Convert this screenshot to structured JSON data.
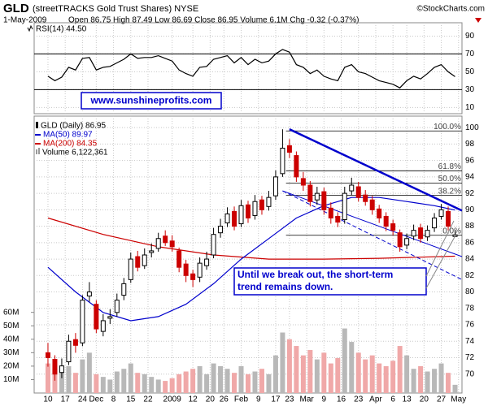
{
  "chart_data": {
    "type": "candlestick",
    "header": {
      "symbol": "GLD",
      "name": "(streetTRACKS Gold Trust Shares) NYSE",
      "source": "©StockCharts.com",
      "date": "1-May-2009",
      "quote": "Open 86.75 High 87.49 Low 86.69 Close 86.95 Volume 6.1M Chg -0.32 (-0.37%)"
    },
    "xlim": [
      -4,
      120
    ],
    "xticks": [
      {
        "value": 0,
        "label": "10"
      },
      {
        "value": 5,
        "label": "17"
      },
      {
        "value": 10,
        "label": "24"
      },
      {
        "value": 14,
        "label": "Dec"
      },
      {
        "value": 19,
        "label": "8"
      },
      {
        "value": 24,
        "label": "15"
      },
      {
        "value": 29,
        "label": "22"
      },
      {
        "value": 36,
        "label": "2009"
      },
      {
        "value": 42,
        "label": "12"
      },
      {
        "value": 47,
        "label": "20"
      },
      {
        "value": 51,
        "label": "26"
      },
      {
        "value": 56,
        "label": "Feb"
      },
      {
        "value": 61,
        "label": "9"
      },
      {
        "value": 66,
        "label": "17"
      },
      {
        "value": 70,
        "label": "23"
      },
      {
        "value": 75,
        "label": "Mar"
      },
      {
        "value": 80,
        "label": "9"
      },
      {
        "value": 85,
        "label": "16"
      },
      {
        "value": 90,
        "label": "23"
      },
      {
        "value": 95,
        "label": "Apr"
      },
      {
        "value": 100,
        "label": "6"
      },
      {
        "value": 104,
        "label": "13"
      },
      {
        "value": 109,
        "label": "20"
      },
      {
        "value": 114,
        "label": "27"
      },
      {
        "value": 119,
        "label": "May"
      }
    ],
    "grid": true,
    "rsi": {
      "name": "RSI(14) 44.50",
      "color": "#000000",
      "ylim": [
        3,
        105
      ],
      "yticks": [
        10,
        30,
        50,
        70,
        90
      ],
      "bands": [
        30,
        70
      ],
      "x": [
        0,
        2,
        4,
        6,
        8,
        10,
        12,
        14,
        16,
        18,
        20,
        22,
        24,
        26,
        28,
        30,
        32,
        34,
        36,
        38,
        40,
        42,
        44,
        46,
        48,
        50,
        52,
        54,
        56,
        58,
        60,
        62,
        64,
        66,
        68,
        70,
        72,
        74,
        76,
        78,
        80,
        82,
        84,
        86,
        88,
        90,
        92,
        94,
        96,
        98,
        100,
        102,
        104,
        106,
        108,
        110,
        112,
        114,
        116,
        118
      ],
      "values": [
        45,
        40,
        44,
        55,
        52,
        65,
        66,
        52,
        55,
        56,
        60,
        64,
        70,
        65,
        66,
        66,
        68,
        65,
        62,
        52,
        48,
        45,
        55,
        56,
        64,
        66,
        68,
        60,
        66,
        58,
        64,
        60,
        62,
        70,
        75,
        72,
        58,
        55,
        48,
        52,
        45,
        42,
        40,
        55,
        58,
        50,
        48,
        44,
        40,
        38,
        36,
        32,
        40,
        45,
        42,
        48,
        55,
        58,
        50,
        44.5
      ]
    },
    "price": {
      "name": "GLD (Daily) 86.95",
      "up_color": "#000000",
      "down_color": "#cc0000",
      "ylim": [
        67.7,
        101.4
      ],
      "yticks": [
        70,
        72,
        74,
        76,
        78,
        80,
        82,
        84,
        86,
        88,
        90,
        92,
        94,
        96,
        98,
        100
      ],
      "x": [
        0,
        2,
        4,
        6,
        8,
        10,
        12,
        14,
        16,
        18,
        20,
        22,
        24,
        26,
        28,
        30,
        32,
        34,
        36,
        38,
        40,
        42,
        44,
        46,
        48,
        50,
        52,
        54,
        56,
        58,
        60,
        62,
        64,
        66,
        68,
        70,
        72,
        74,
        76,
        78,
        80,
        82,
        84,
        86,
        88,
        90,
        92,
        94,
        96,
        98,
        100,
        102,
        104,
        106,
        108,
        110,
        112,
        114,
        116,
        118
      ],
      "open": [
        72.6,
        71.8,
        70.2,
        71.5,
        74.2,
        73.8,
        79.5,
        78.5,
        75.2,
        76.8,
        77.5,
        79.6,
        81.5,
        84.3,
        83.2,
        84.8,
        85.3,
        86.8,
        86.2,
        85,
        83.4,
        82.2,
        81.8,
        83.2,
        84.5,
        87.2,
        88.4,
        89.8,
        88.3,
        90.6,
        89.3,
        91.2,
        90.4,
        91.7,
        94.4,
        97.8,
        96.6,
        93.8,
        93,
        91.2,
        92.2,
        90.2,
        89.2,
        88.8,
        92.3,
        92.8,
        91.8,
        91.2,
        90.1,
        89.2,
        88.3,
        87.2,
        85.7,
        86.8,
        87.8,
        86.7,
        87.8,
        89.2,
        89.8,
        86.75
      ],
      "high": [
        73.8,
        72.3,
        71.9,
        74.8,
        75,
        79.6,
        81.2,
        79,
        77.3,
        77.9,
        79.8,
        81.7,
        84.8,
        85,
        85.3,
        85.9,
        87.2,
        87.5,
        86.9,
        85.4,
        83.9,
        82.7,
        84.2,
        84.9,
        87.8,
        88.9,
        90.3,
        90.4,
        91.2,
        91.1,
        91.8,
        91.7,
        92.3,
        94.8,
        99.8,
        98.6,
        97.1,
        94.6,
        93.5,
        92.8,
        92.7,
        90.9,
        89.7,
        92.8,
        93.9,
        93.4,
        92.4,
        91.7,
        90.6,
        89.7,
        88.8,
        87.6,
        87.1,
        88.2,
        88.3,
        88.1,
        89.6,
        90.7,
        90.4,
        87.49
      ],
      "low": [
        70.9,
        69.2,
        69.5,
        71.1,
        72.6,
        73.4,
        78.8,
        75,
        74.6,
        76.1,
        77,
        79,
        81.1,
        82.5,
        82.8,
        84.2,
        84.9,
        85.6,
        84.9,
        82.4,
        81.2,
        80.6,
        81.2,
        82.7,
        84.1,
        86.6,
        87.9,
        87.5,
        87.9,
        88.4,
        88.8,
        89.4,
        89.9,
        91.2,
        94,
        96.3,
        93.4,
        92.3,
        90.4,
        90.6,
        89.4,
        88.3,
        87.9,
        88.3,
        91.8,
        91,
        90.5,
        89.4,
        88.4,
        87.4,
        86.9,
        84.9,
        85.2,
        86.3,
        86,
        86.2,
        87.3,
        88.8,
        87.5,
        86.69
      ],
      "close": [
        72,
        70,
        71,
        74,
        73.5,
        79,
        80,
        75.5,
        76.5,
        77,
        79,
        81,
        84,
        83,
        84.5,
        85,
        86.5,
        86,
        85.5,
        83,
        82,
        81.5,
        83.5,
        84,
        87,
        88,
        89.5,
        88,
        90.5,
        89,
        91,
        90,
        91.5,
        94,
        97.5,
        97,
        94,
        93,
        91,
        92,
        90,
        89,
        88.5,
        92,
        93,
        91.5,
        91,
        90,
        89,
        88,
        87.5,
        85.5,
        86.5,
        87.5,
        86.5,
        87.5,
        89,
        90,
        88,
        86.95
      ]
    },
    "ma50": {
      "name": "MA(50) 89.97",
      "color": "#0000cc",
      "x": [
        0,
        8,
        16,
        24,
        32,
        40,
        48,
        56,
        64,
        72,
        80,
        88,
        96,
        104,
        112,
        118
      ],
      "values": [
        83,
        80,
        77.5,
        76.5,
        77,
        78.5,
        81,
        84,
        86.5,
        89,
        90.5,
        91.5,
        91.5,
        91,
        90.5,
        89.97
      ]
    },
    "ma200": {
      "name": "MA(200) 84.35",
      "color": "#cc0000",
      "x": [
        0,
        16,
        32,
        48,
        64,
        80,
        96,
        118
      ],
      "values": [
        89,
        87,
        85.5,
        84.5,
        84,
        84,
        84.1,
        84.35
      ]
    },
    "volume": {
      "name": "Volume 6,122,361",
      "up_color": "#b8b8b8",
      "down_color": "#f0a8a8",
      "ylim": [
        0,
        206000000
      ],
      "yticks": [
        {
          "value": 10000000,
          "label": "10M"
        },
        {
          "value": 20000000,
          "label": "20M"
        },
        {
          "value": 30000000,
          "label": "30M"
        },
        {
          "value": 40000000,
          "label": "40M"
        },
        {
          "value": 50000000,
          "label": "50M"
        },
        {
          "value": 60000000,
          "label": "60M"
        }
      ],
      "values": [
        22000000,
        18000000,
        16000000,
        20000000,
        15000000,
        25000000,
        30000000,
        14000000,
        12000000,
        10000000,
        16000000,
        18000000,
        22000000,
        15000000,
        14000000,
        12000000,
        10000000,
        9000000,
        11000000,
        14000000,
        16000000,
        18000000,
        20000000,
        14000000,
        22000000,
        20000000,
        18000000,
        15000000,
        20000000,
        14000000,
        16000000,
        18000000,
        14000000,
        28000000,
        45000000,
        40000000,
        35000000,
        28000000,
        32000000,
        25000000,
        30000000,
        22000000,
        26000000,
        48000000,
        38000000,
        30000000,
        25000000,
        28000000,
        22000000,
        20000000,
        24000000,
        35000000,
        28000000,
        18000000,
        20000000,
        16000000,
        18000000,
        22000000,
        15000000,
        6122361
      ]
    },
    "fib_levels": [
      {
        "label": "100.0%",
        "value": 99.6
      },
      {
        "label": "61.8%",
        "value": 94.75
      },
      {
        "label": "50.0%",
        "value": 93.25
      },
      {
        "label": "38.2%",
        "value": 91.75
      },
      {
        "label": "0.0%",
        "value": 86.9
      }
    ],
    "fib_start": 69,
    "trendlines": [
      {
        "from": [
          70,
          99.8
        ],
        "to": [
          120,
          89.9
        ],
        "color": "#0000cc",
        "width": 2.5,
        "dashed": false
      },
      {
        "from": [
          68,
          92.3
        ],
        "to": [
          120,
          84.3
        ],
        "color": "#0000cc",
        "width": 1,
        "dashed": false
      },
      {
        "from": [
          68,
          92.3
        ],
        "to": [
          120,
          81.5
        ],
        "color": "#0000cc",
        "width": 1,
        "dashed": true
      }
    ],
    "website": "www.sunshineprofits.com",
    "annotation": [
      "Until we break out, the short-term",
      "trend remains down."
    ]
  }
}
